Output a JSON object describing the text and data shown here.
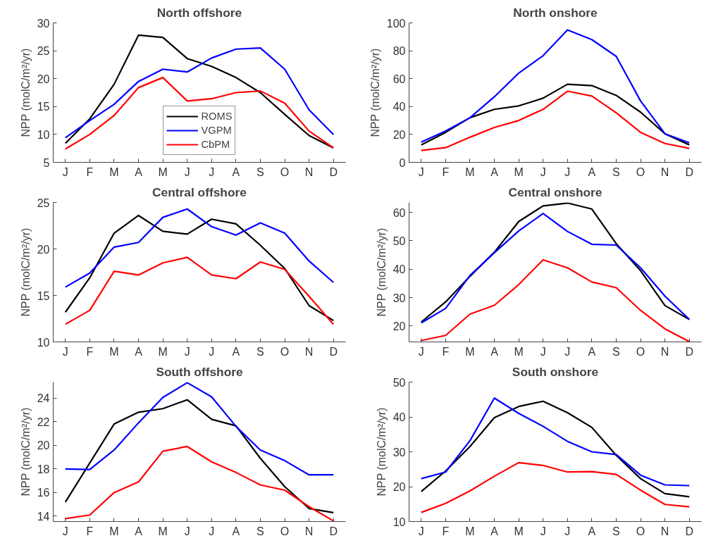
{
  "chart_data": [
    {
      "type": "line",
      "title": "North offshore",
      "ylabel": "NPP (molC/m²/yr)",
      "categories": [
        "J",
        "F",
        "M",
        "A",
        "M",
        "J",
        "J",
        "A",
        "S",
        "O",
        "N",
        "D"
      ],
      "ylim": [
        5,
        30
      ],
      "yticks": [
        5,
        10,
        15,
        20,
        25,
        30
      ],
      "grid": false,
      "legend": "bottom",
      "marker": "none",
      "line_style": "solid",
      "series": [
        {
          "name": "ROMS",
          "color": "#000000",
          "values": [
            8.4,
            12.8,
            19,
            27.8,
            27.4,
            23.6,
            22.2,
            20.2,
            17.5,
            13.6,
            9.8,
            7.6
          ]
        },
        {
          "name": "VGPM",
          "color": "#0000ff",
          "values": [
            9.4,
            12.5,
            15.4,
            19.5,
            21.7,
            21.2,
            23.7,
            25.3,
            25.5,
            21.7,
            14.4,
            10
          ]
        },
        {
          "name": "CbPM",
          "color": "#ff0000",
          "values": [
            7.4,
            10,
            13.4,
            18.4,
            20.2,
            16,
            16.4,
            17.5,
            17.8,
            15.6,
            10.6,
            7.6
          ]
        }
      ]
    },
    {
      "type": "line",
      "title": "North onshore",
      "ylabel": "NPP (molC/m²/yr)",
      "categories": [
        "J",
        "F",
        "M",
        "A",
        "M",
        "J",
        "J",
        "A",
        "S",
        "O",
        "N",
        "D"
      ],
      "ylim": [
        0,
        100
      ],
      "yticks": [
        0,
        20,
        40,
        60,
        80,
        100
      ],
      "grid": false,
      "marker": "none",
      "line_style": "solid",
      "series": [
        {
          "color": "#000000",
          "values": [
            12.5,
            21.5,
            32,
            38,
            40.5,
            46,
            56,
            55,
            48,
            36,
            20.5,
            12.5
          ]
        },
        {
          "color": "#0000ff",
          "values": [
            14.5,
            22.5,
            32,
            47,
            64,
            76.5,
            95,
            88,
            76,
            44,
            20.5,
            14
          ]
        },
        {
          "color": "#ff0000",
          "values": [
            8.5,
            10.5,
            18,
            25,
            30,
            38,
            51,
            47.5,
            35.5,
            21.5,
            13.5,
            10
          ]
        }
      ]
    },
    {
      "type": "line",
      "title": "Central offshore",
      "ylabel": "NPP (molC/m²/yr)",
      "categories": [
        "J",
        "F",
        "M",
        "A",
        "M",
        "J",
        "J",
        "A",
        "S",
        "O",
        "N",
        "D"
      ],
      "ylim": [
        10,
        25
      ],
      "yticks": [
        10,
        15,
        20,
        25
      ],
      "grid": false,
      "marker": "none",
      "line_style": "solid",
      "series": [
        {
          "color": "#000000",
          "values": [
            13.2,
            16.9,
            21.7,
            23.6,
            21.9,
            21.6,
            23.2,
            22.7,
            20.4,
            17.9,
            13.9,
            12.3
          ]
        },
        {
          "color": "#0000ff",
          "values": [
            15.9,
            17.4,
            20.2,
            20.7,
            23.4,
            24.3,
            22.4,
            21.5,
            22.8,
            21.7,
            18.7,
            16.4
          ]
        },
        {
          "color": "#ff0000",
          "values": [
            11.9,
            13.4,
            17.6,
            17.2,
            18.5,
            19.1,
            17.2,
            16.8,
            18.6,
            17.8,
            14.9,
            11.9
          ]
        }
      ]
    },
    {
      "type": "line",
      "title": "Central onshore",
      "ylabel": "NPP (molC/m²/yr)",
      "categories": [
        "J",
        "F",
        "M",
        "A",
        "M",
        "J",
        "J",
        "A",
        "S",
        "O",
        "N",
        "D"
      ],
      "ylim": [
        14.4,
        63.5
      ],
      "yticks": [
        20,
        30,
        40,
        50,
        60
      ],
      "grid": false,
      "marker": "none",
      "line_style": "solid",
      "series": [
        {
          "color": "#000000",
          "values": [
            21.4,
            28.5,
            37.5,
            46,
            56.8,
            62.3,
            63.3,
            61.2,
            49,
            39.5,
            27.2,
            22.3
          ]
        },
        {
          "color": "#0000ff",
          "values": [
            21.1,
            26.2,
            37.8,
            45.8,
            53.5,
            59.6,
            53.3,
            48.8,
            48.5,
            40.5,
            30.5,
            22.3
          ]
        },
        {
          "color": "#ff0000",
          "values": [
            14.9,
            16.7,
            24.2,
            27.3,
            34.6,
            43.3,
            40.5,
            35.5,
            33.5,
            25.5,
            19,
            14.5
          ]
        }
      ]
    },
    {
      "type": "line",
      "title": "South offshore",
      "ylabel": "NPP (molC/m²/yr)",
      "categories": [
        "J",
        "F",
        "M",
        "A",
        "M",
        "J",
        "J",
        "A",
        "S",
        "O",
        "N",
        "D"
      ],
      "ylim": [
        13.55,
        25.35
      ],
      "yticks": [
        14,
        16,
        18,
        20,
        22,
        24
      ],
      "grid": false,
      "marker": "none",
      "line_style": "solid",
      "series": [
        {
          "color": "#000000",
          "values": [
            15.2,
            18.5,
            21.8,
            22.8,
            23.1,
            23.85,
            22.2,
            21.65,
            18.9,
            16.5,
            14.65,
            14.3
          ]
        },
        {
          "color": "#0000ff",
          "values": [
            18,
            17.95,
            19.6,
            21.9,
            24.05,
            25.3,
            24.1,
            21.6,
            19.6,
            18.7,
            17.5,
            17.5
          ]
        },
        {
          "color": "#ff0000",
          "values": [
            13.8,
            14.1,
            16,
            16.9,
            19.5,
            19.9,
            18.6,
            17.7,
            16.65,
            16.2,
            14.8,
            13.6
          ]
        }
      ]
    },
    {
      "type": "line",
      "title": "South onshore",
      "ylabel": "NPP (molC/m²/yr)",
      "categories": [
        "J",
        "F",
        "M",
        "A",
        "M",
        "J",
        "J",
        "A",
        "S",
        "O",
        "N",
        "D"
      ],
      "ylim": [
        10,
        50
      ],
      "yticks": [
        10,
        20,
        30,
        40,
        50
      ],
      "grid": false,
      "marker": "none",
      "line_style": "solid",
      "series": [
        {
          "color": "#000000",
          "values": [
            18.6,
            24.5,
            31.5,
            39.8,
            43,
            44.5,
            41.2,
            37,
            29,
            22.3,
            18,
            17.1
          ]
        },
        {
          "color": "#0000ff",
          "values": [
            22.3,
            24.2,
            33.2,
            45.4,
            41,
            37.3,
            33,
            30,
            29.2,
            23.3,
            20.5,
            20.3
          ]
        },
        {
          "color": "#ff0000",
          "values": [
            12.6,
            15.2,
            18.8,
            23,
            26.9,
            26.1,
            24.2,
            24.3,
            23.5,
            19,
            14.9,
            14.2
          ]
        }
      ]
    }
  ]
}
